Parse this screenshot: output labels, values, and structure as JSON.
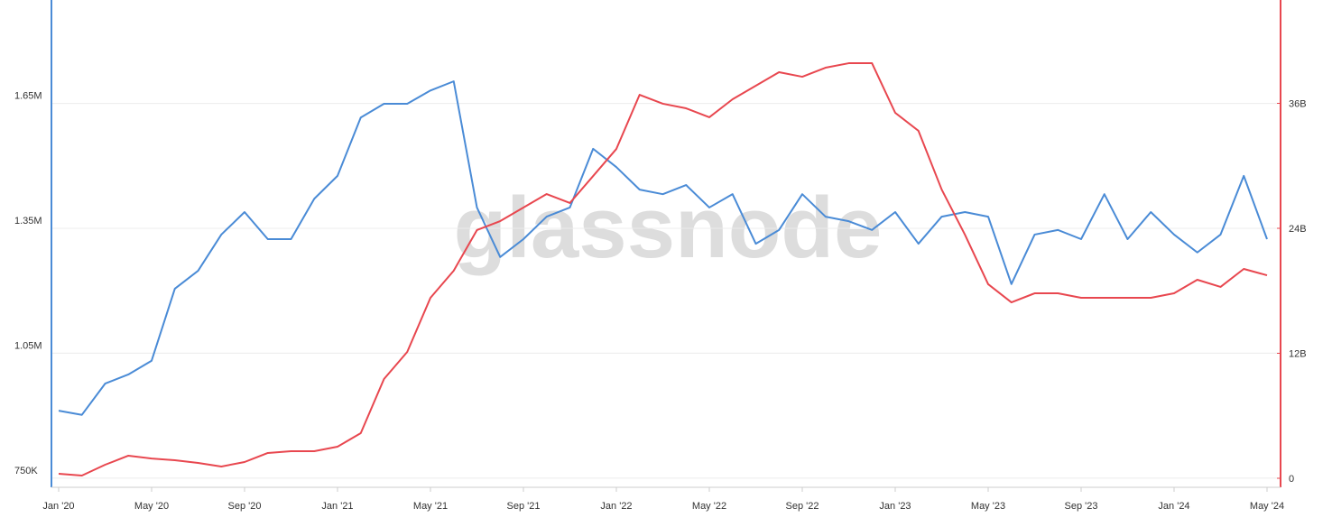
{
  "chart_data": {
    "type": "line",
    "watermark": "glassnode",
    "categories": [
      "Jan '20",
      null,
      null,
      null,
      "May '20",
      null,
      null,
      null,
      "Sep '20",
      null,
      null,
      null,
      "Jan '21",
      null,
      null,
      null,
      "May '21",
      null,
      null,
      null,
      "Sep '21",
      null,
      null,
      null,
      "Jan '22",
      null,
      null,
      null,
      "May '22",
      null,
      null,
      null,
      "Sep '22",
      null,
      null,
      null,
      "Jan '23",
      null,
      null,
      null,
      "May '23",
      null,
      null,
      null,
      "Sep '23",
      null,
      null,
      null,
      "Jan '24",
      null,
      null,
      null,
      "May '24"
    ],
    "series": [
      {
        "color": "#4a8bd6",
        "axis": "y",
        "values": [
          912000,
          902000,
          977000,
          999000,
          1032000,
          1205000,
          1248000,
          1335000,
          1389000,
          1324000,
          1324000,
          1421000,
          1476000,
          1616000,
          1649000,
          1649000,
          1681000,
          1703000,
          1400000,
          1281000,
          1324000,
          1378000,
          1400000,
          1541000,
          1497000,
          1443000,
          1432000,
          1454000,
          1400000,
          1432000,
          1313000,
          1346000,
          1432000,
          1378000,
          1367000,
          1346000,
          1389000,
          1313000,
          1378000,
          1389000,
          1378000,
          1216000,
          1335000,
          1346000,
          1324000,
          1432000,
          1324000,
          1389000,
          1335000,
          1292000,
          1335000,
          1476000,
          1324000
        ]
      },
      {
        "color": "#e8474f",
        "axis": "y2",
        "values": [
          430000000,
          260000000,
          1300000000,
          2170000000,
          1900000000,
          1730000000,
          1470000000,
          1130000000,
          1560000000,
          2430000000,
          2600000000,
          2600000000,
          3030000000,
          4330000000,
          9530000000,
          12130000000,
          17330000000,
          19930000000,
          23830000000,
          24690000000,
          25990000000,
          27290000000,
          26430000000,
          29020000000,
          31620000000,
          36820000000,
          35960000000,
          35520000000,
          34660000000,
          36390000000,
          37690000000,
          38990000000,
          38550000000,
          39420000000,
          39850000000,
          39850000000,
          35090000000,
          33360000000,
          27720000000,
          23390000000,
          18630000000,
          16890000000,
          17760000000,
          17760000000,
          17330000000,
          17330000000,
          17330000000,
          17330000000,
          17760000000,
          19060000000,
          18370000000,
          20100000000,
          19490000000
        ]
      }
    ],
    "ylim": [
      728000,
      1881000
    ],
    "yticks": [
      {
        "value": 750000,
        "label": "750K"
      },
      {
        "value": 1050000,
        "label": "1.05M"
      },
      {
        "value": 1350000,
        "label": "1.35M"
      },
      {
        "value": 1650000,
        "label": "1.65M"
      }
    ],
    "y2lim": [
      -866000000,
      45226000000
    ],
    "y2ticks": [
      0,
      {
        "value": 12000000000,
        "label": "12B"
      },
      {
        "value": 24000000000,
        "label": "24B"
      },
      {
        "value": 36000000000,
        "label": "36B"
      }
    ],
    "grid": true
  }
}
